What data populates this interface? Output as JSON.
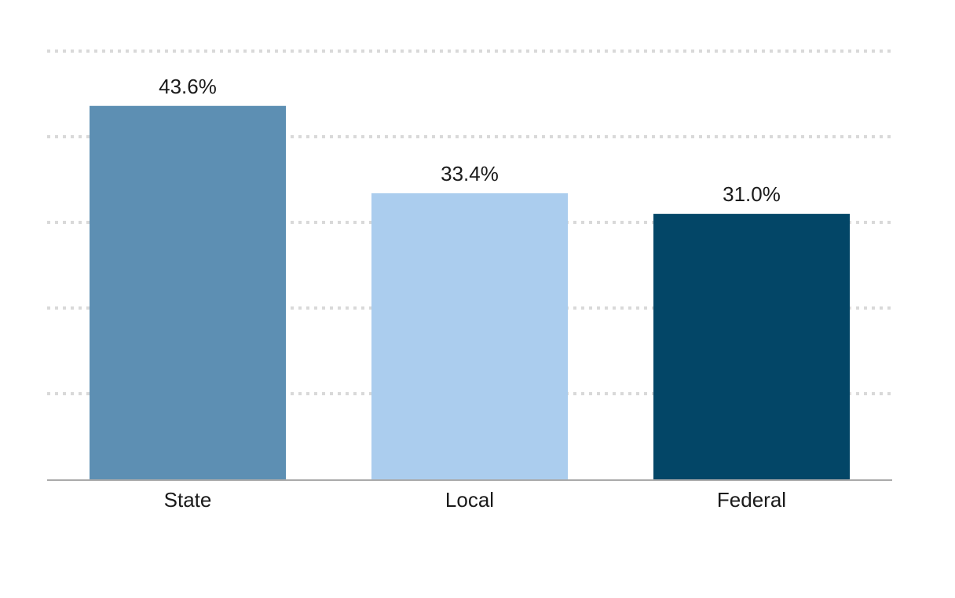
{
  "chart_data": {
    "type": "bar",
    "title": "",
    "xlabel": "",
    "ylabel": "",
    "categories": [
      "State",
      "Local",
      "Federal"
    ],
    "values": [
      43.6,
      33.4,
      31.0
    ],
    "value_labels": [
      "43.6%",
      "33.4%",
      "31.0%"
    ],
    "colors": [
      "#5d8fb3",
      "#abcdee",
      "#034667"
    ],
    "ylim": [
      0,
      50
    ],
    "grid": true,
    "gridline_values": [
      10,
      20,
      30,
      40,
      50
    ],
    "legend": "none"
  }
}
